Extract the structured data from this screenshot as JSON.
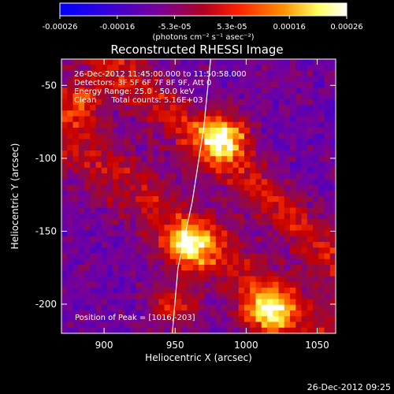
{
  "chart_data": {
    "type": "heatmap",
    "title": "Reconstructed RHESSI Image",
    "xlabel": "Heliocentric X (arcsec)",
    "ylabel": "Heliocentric Y (arcsec)",
    "xlim": [
      870,
      1063
    ],
    "ylim": [
      -220,
      -32
    ],
    "x_ticks": [
      900,
      950,
      1000,
      1050
    ],
    "y_ticks": [
      -50,
      -100,
      -150,
      -200
    ],
    "colorbar": {
      "ticks": [
        "-0.00026",
        "-0.00016",
        "-5.3e-05",
        "5.3e-05",
        "0.00016",
        "0.00026"
      ],
      "range": [
        -0.00026,
        0.00026
      ],
      "unit_label": "(photons cm⁻² s⁻¹ asec⁻²)",
      "colors": [
        "#0000ff",
        "#4a00c8",
        "#7a0096",
        "#8e1482",
        "#c00000",
        "#ff4000",
        "#ffa000",
        "#ffff60",
        "#ffffff"
      ]
    },
    "annotations": [
      "26-Dec-2012 11:45:00.000 to 11:50:58.000",
      "Detectors: 3F 5F 6F 7F 8F 9F, Att 0",
      "Energy Range: 25.0 - 50.0 keV",
      "Clean      Total counts: 5.16E+03"
    ],
    "peak_label": "Position of Peak = [1016,-203]",
    "bright_regions": [
      {
        "x": 985,
        "y": -85,
        "level": 0.00026
      },
      {
        "x": 960,
        "y": -160,
        "level": 0.00026
      },
      {
        "x": 1015,
        "y": -205,
        "level": 0.00026
      },
      {
        "x": 885,
        "y": -60,
        "level": 0.00016
      },
      {
        "x": 950,
        "y": -200,
        "level": 0.00016
      }
    ],
    "limb_curve": [
      [
        975,
        -32
      ],
      [
        970,
        -80
      ],
      [
        962,
        -130
      ],
      [
        952,
        -175
      ],
      [
        948,
        -220
      ]
    ]
  },
  "footer": {
    "timestamp": "26-Dec-2012 09:25"
  }
}
